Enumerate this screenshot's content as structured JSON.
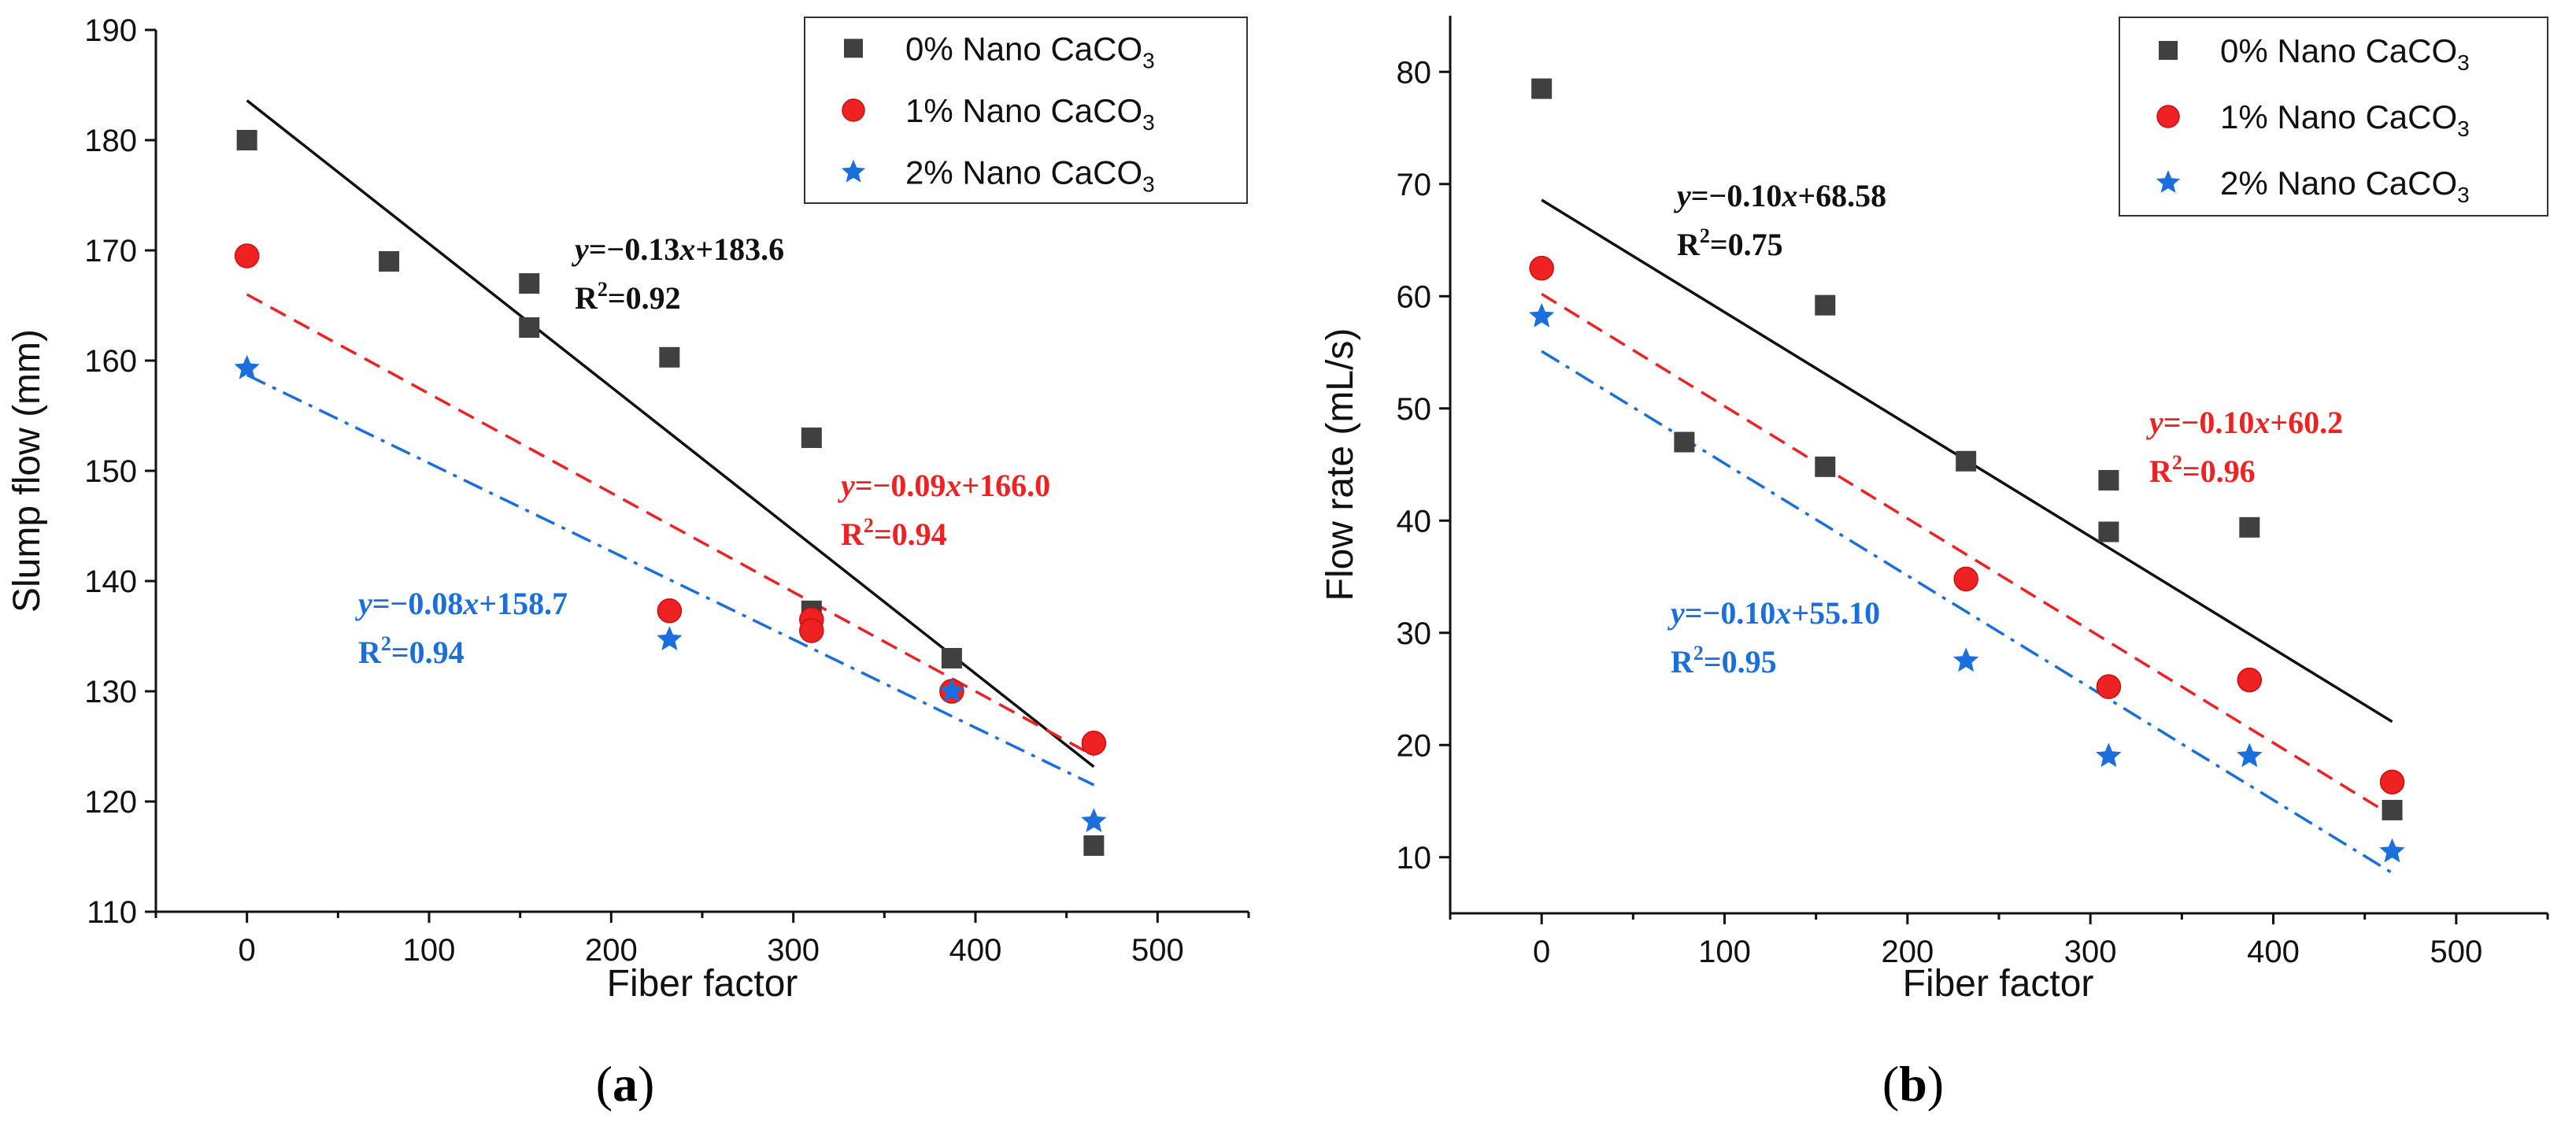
{
  "chart_data": [
    {
      "type": "scatter",
      "xlabel": "Fiber factor",
      "ylabel": "Slump flow (mm)",
      "xlim": [
        -50,
        550
      ],
      "ylim": [
        110,
        190
      ],
      "xticks": [
        0,
        100,
        200,
        300,
        400,
        500
      ],
      "yticks": [
        110,
        120,
        130,
        140,
        150,
        160,
        170,
        180,
        190
      ],
      "caption_letter": "a",
      "legend_position": "top-right",
      "series": [
        {
          "name": "0% Nano CaCO3",
          "color": "#404040",
          "marker": "square",
          "line": "solid",
          "x": [
            0,
            78,
            155,
            155,
            232,
            310,
            310,
            387,
            465
          ],
          "y": [
            180,
            169,
            167,
            163,
            160.3,
            153,
            137.3,
            133,
            116
          ],
          "fit": {
            "slope": -0.13,
            "intercept": 183.6,
            "x_range": [
              0,
              465
            ]
          },
          "equation": {
            "lhs": "y",
            "rhs": "=−0.13",
            "var": "x",
            "tail": "+183.6",
            "r2": "=0.92"
          }
        },
        {
          "name": "1% Nano CaCO3",
          "color": "#ee2222",
          "marker": "circle",
          "line": "dashed",
          "x": [
            0,
            232,
            310,
            310,
            387,
            465
          ],
          "y": [
            169.5,
            137.3,
            136.5,
            135.5,
            130,
            125.3
          ],
          "fit": {
            "slope": -0.09,
            "intercept": 166.0,
            "x_range": [
              0,
              465
            ]
          },
          "equation": {
            "lhs": "y",
            "rhs": "=−0.09",
            "var": "x",
            "tail": "+166.0",
            "r2": "=0.94"
          }
        },
        {
          "name": "2% Nano CaCO3",
          "color": "#1a6fdc",
          "marker": "star",
          "line": "dashdot",
          "x": [
            0,
            232,
            387,
            465
          ],
          "y": [
            159.3,
            134.7,
            130,
            118.2
          ],
          "fit": {
            "slope": -0.08,
            "intercept": 158.7,
            "x_range": [
              0,
              465
            ]
          },
          "equation": {
            "lhs": "y",
            "rhs": "=−0.08",
            "var": "x",
            "tail": "+158.7",
            "r2": "=0.94"
          }
        }
      ]
    },
    {
      "type": "scatter",
      "xlabel": "Fiber factor",
      "ylabel": "Flow rate (mL/s)",
      "xlim": [
        -50,
        550
      ],
      "ylim": [
        5,
        85
      ],
      "xticks": [
        0,
        100,
        200,
        300,
        400,
        500
      ],
      "yticks": [
        10,
        20,
        30,
        40,
        50,
        60,
        70,
        80
      ],
      "caption_letter": "b",
      "legend_position": "top-right",
      "series": [
        {
          "name": "0% Nano CaCO3",
          "color": "#404040",
          "marker": "square",
          "line": "solid",
          "x": [
            0,
            78,
            155,
            155,
            232,
            310,
            310,
            387,
            465
          ],
          "y": [
            78.5,
            47,
            59.2,
            44.8,
            45.3,
            43.6,
            39,
            39.4,
            14.2
          ],
          "fit": {
            "slope": -0.1,
            "intercept": 68.58,
            "x_range": [
              0,
              465
            ]
          },
          "equation": {
            "lhs": "y",
            "rhs": "=−0.10",
            "var": "x",
            "tail": "+68.58",
            "r2": "=0.75"
          }
        },
        {
          "name": "1% Nano CaCO3",
          "color": "#ee2222",
          "marker": "circle",
          "line": "dashed",
          "x": [
            0,
            232,
            310,
            387,
            465
          ],
          "y": [
            62.5,
            34.8,
            25.2,
            25.8,
            16.7
          ],
          "fit": {
            "slope": -0.1,
            "intercept": 60.2,
            "x_range": [
              0,
              465
            ]
          },
          "equation": {
            "lhs": "y",
            "rhs": "=−0.10",
            "var": "x",
            "tail": "+60.2",
            "r2": "=0.96"
          }
        },
        {
          "name": "2% Nano CaCO3",
          "color": "#1a6fdc",
          "marker": "star",
          "line": "dashdot",
          "x": [
            0,
            232,
            310,
            387,
            465
          ],
          "y": [
            58.2,
            27.5,
            19,
            19,
            10.5
          ],
          "fit": {
            "slope": -0.1,
            "intercept": 55.1,
            "x_range": [
              0,
              465
            ]
          },
          "equation": {
            "lhs": "y",
            "rhs": "=−0.10",
            "var": "x",
            "tail": "+55.10",
            "r2": "=0.95"
          }
        }
      ]
    }
  ]
}
